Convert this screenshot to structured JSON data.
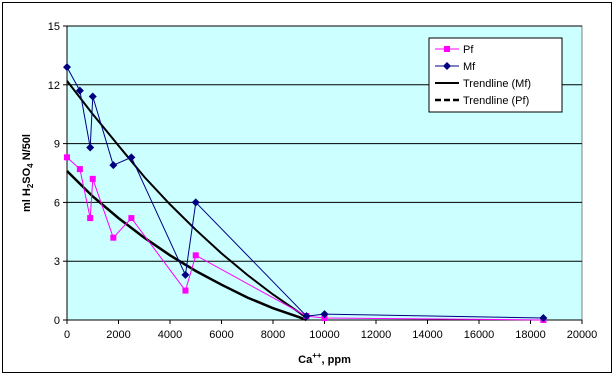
{
  "chart_data": {
    "type": "line",
    "xlabel": {
      "base": "Ca",
      "sup": "++",
      "rest": ", ppm"
    },
    "ylabel": {
      "parts": [
        {
          "t": "ml H",
          "sub": false
        },
        {
          "t": "2",
          "sub": true
        },
        {
          "t": "SO",
          "sub": false
        },
        {
          "t": "4",
          "sub": true
        },
        {
          "t": " N/50l",
          "sub": false
        }
      ]
    },
    "xlim": [
      0,
      20000
    ],
    "ylim": [
      0,
      15
    ],
    "x_ticks": [
      0,
      2000,
      4000,
      6000,
      8000,
      10000,
      12000,
      14000,
      16000,
      18000,
      20000
    ],
    "y_ticks": [
      0,
      3,
      6,
      9,
      12,
      15
    ],
    "grid": "horizontal",
    "plot_background": "#ccffff",
    "legend_position": "top-right",
    "series": [
      {
        "name": "Pf",
        "color": "#ff00ff",
        "marker": "square",
        "points": [
          [
            0,
            8.3
          ],
          [
            500,
            7.7
          ],
          [
            900,
            5.2
          ],
          [
            1000,
            7.2
          ],
          [
            1800,
            4.2
          ],
          [
            2500,
            5.2
          ],
          [
            4600,
            1.5
          ],
          [
            5000,
            3.3
          ],
          [
            9300,
            0.2
          ],
          [
            10000,
            0.1
          ],
          [
            18500,
            0.0
          ]
        ]
      },
      {
        "name": "Mf",
        "color": "#000080",
        "marker": "diamond",
        "points": [
          [
            0,
            12.9
          ],
          [
            500,
            11.7
          ],
          [
            900,
            8.8
          ],
          [
            1000,
            11.4
          ],
          [
            1800,
            7.9
          ],
          [
            2500,
            8.3
          ],
          [
            4600,
            2.3
          ],
          [
            5000,
            6.0
          ],
          [
            9300,
            0.2
          ],
          [
            10000,
            0.3
          ],
          [
            18500,
            0.1
          ]
        ]
      }
    ],
    "trendlines": [
      {
        "name": "Trendline (Mf)",
        "style": "solid",
        "points": [
          [
            0,
            12.2
          ],
          [
            1000,
            10.5
          ],
          [
            2000,
            8.9
          ],
          [
            3000,
            7.3
          ],
          [
            4000,
            5.9
          ],
          [
            5000,
            4.6
          ],
          [
            6000,
            3.4
          ],
          [
            7000,
            2.3
          ],
          [
            8000,
            1.3
          ],
          [
            9000,
            0.4
          ],
          [
            9300,
            0.1
          ]
        ]
      },
      {
        "name": "Trendline (Pf)",
        "style": "dashed",
        "points": [
          [
            0,
            7.6
          ],
          [
            1000,
            6.3
          ],
          [
            2000,
            5.2
          ],
          [
            3000,
            4.2
          ],
          [
            4000,
            3.3
          ],
          [
            5000,
            2.5
          ],
          [
            6000,
            1.8
          ],
          [
            7000,
            1.15
          ],
          [
            8000,
            0.6
          ],
          [
            9000,
            0.15
          ],
          [
            9300,
            0.0
          ]
        ]
      }
    ]
  }
}
